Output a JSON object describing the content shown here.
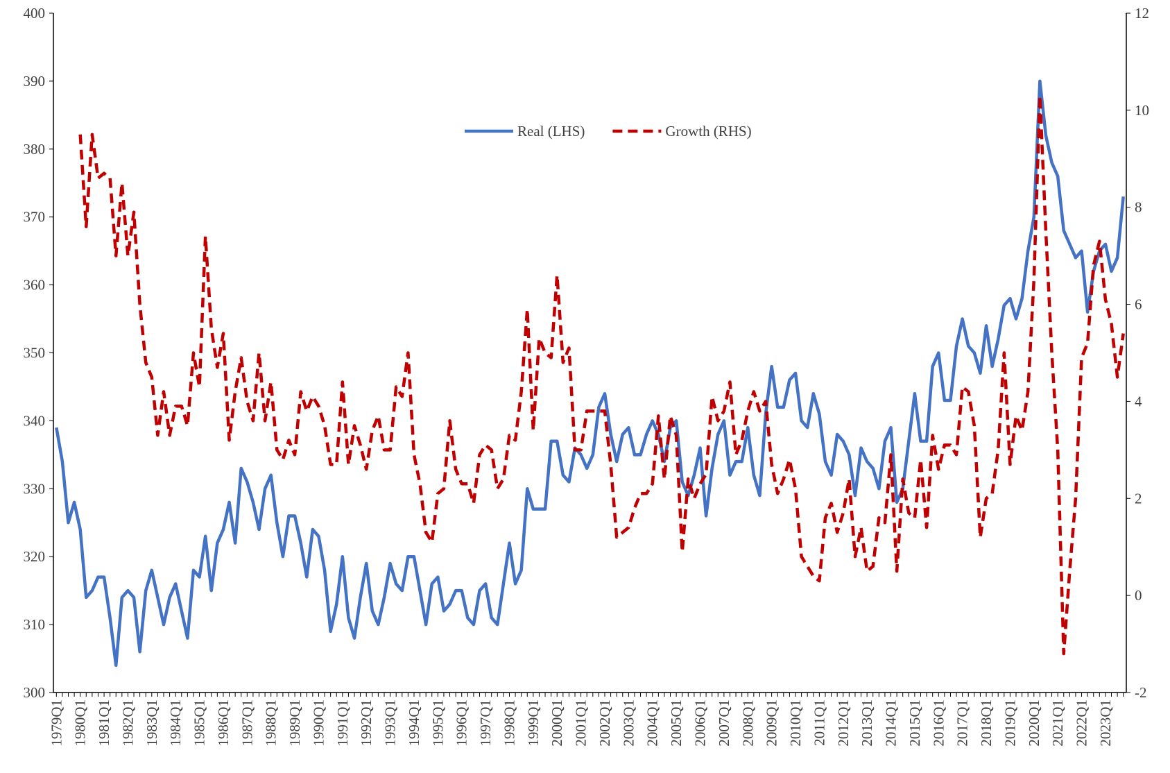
{
  "chart_data": {
    "type": "line",
    "legend": "top",
    "ylim": [
      300,
      400
    ],
    "yticks": [
      300,
      310,
      320,
      330,
      340,
      350,
      360,
      370,
      380,
      390,
      400
    ],
    "y2lim": [
      -2,
      12
    ],
    "y2ticks": [
      -2,
      0,
      2,
      4,
      6,
      8,
      10,
      12
    ],
    "categories": [
      "1979Q1",
      null,
      null,
      null,
      "1980Q1",
      null,
      null,
      null,
      "1981Q1",
      null,
      null,
      null,
      "1982Q1",
      null,
      null,
      null,
      "1983Q1",
      null,
      null,
      null,
      "1984Q1",
      null,
      null,
      null,
      "1985Q1",
      null,
      null,
      null,
      "1986Q1",
      null,
      null,
      null,
      "1987Q1",
      null,
      null,
      null,
      "1988Q1",
      null,
      null,
      null,
      "1989Q1",
      null,
      null,
      null,
      "1990Q1",
      null,
      null,
      null,
      "1991Q1",
      null,
      null,
      null,
      "1992Q1",
      null,
      null,
      null,
      "1993Q1",
      null,
      null,
      null,
      "1994Q1",
      null,
      null,
      null,
      "1995Q1",
      null,
      null,
      null,
      "1996Q1",
      null,
      null,
      null,
      "1997Q1",
      null,
      null,
      null,
      "1998Q1",
      null,
      null,
      null,
      "1999Q1",
      null,
      null,
      null,
      "2000Q1",
      null,
      null,
      null,
      "2001Q1",
      null,
      null,
      null,
      "2002Q1",
      null,
      null,
      null,
      "2003Q1",
      null,
      null,
      null,
      "2004Q1",
      null,
      null,
      null,
      "2005Q1",
      null,
      null,
      null,
      "2006Q1",
      null,
      null,
      null,
      "2007Q1",
      null,
      null,
      null,
      "2008Q1",
      null,
      null,
      null,
      "2009Q1",
      null,
      null,
      null,
      "2010Q1",
      null,
      null,
      null,
      "2011Q1",
      null,
      null,
      null,
      "2012Q1",
      null,
      null,
      null,
      "2013Q1",
      null,
      null,
      null,
      "2014Q1",
      null,
      null,
      null,
      "2015Q1",
      null,
      null,
      null,
      "2016Q1",
      null,
      null,
      null,
      "2017Q1",
      null,
      null,
      null,
      "2018Q1",
      null,
      null,
      null,
      "2019Q1",
      null,
      null,
      null,
      "2020Q1",
      null,
      null,
      null,
      "2021Q1",
      null,
      null,
      null,
      "2022Q1",
      null,
      null,
      null,
      "2023Q1",
      null,
      null,
      null
    ],
    "series": [
      {
        "name": "Real (LHS)",
        "color": "#4472c4",
        "axis": "y",
        "values": [
          339,
          334,
          325,
          328,
          324,
          314,
          315,
          317,
          317,
          311,
          304,
          314,
          315,
          314,
          306,
          315,
          318,
          314,
          310,
          314,
          316,
          312,
          308,
          318,
          317,
          323,
          315,
          322,
          324,
          328,
          322,
          333,
          331,
          328,
          324,
          330,
          332,
          325,
          320,
          326,
          326,
          322,
          317,
          324,
          323,
          318,
          309,
          313,
          320,
          311,
          308,
          314,
          319,
          312,
          310,
          314,
          319,
          316,
          315,
          320,
          320,
          315,
          310,
          316,
          317,
          312,
          313,
          315,
          315,
          311,
          310,
          315,
          316,
          311,
          310,
          316,
          322,
          316,
          318,
          330,
          327,
          327,
          327,
          337,
          337,
          332,
          331,
          336,
          335,
          333,
          335,
          342,
          344,
          338,
          334,
          338,
          339,
          335,
          335,
          338,
          340,
          338,
          334,
          339,
          340,
          331,
          329,
          332,
          336,
          326,
          333,
          338,
          340,
          332,
          334,
          334,
          339,
          332,
          329,
          341,
          348,
          342,
          342,
          346,
          347,
          340,
          339,
          344,
          341,
          334,
          332,
          338,
          337,
          335,
          329,
          336,
          334,
          333,
          330,
          337,
          339,
          328,
          330,
          337,
          344,
          337,
          337,
          348,
          350,
          343,
          343,
          351,
          355,
          351,
          350,
          347,
          354,
          348,
          352,
          357,
          358,
          355,
          358,
          365,
          370,
          390,
          382,
          378,
          376,
          368,
          366,
          364,
          365,
          356,
          362,
          365,
          366,
          362,
          364,
          373
        ]
      },
      {
        "name": "Growth (RHS)",
        "color": "#c00000",
        "axis": "y2",
        "dashed": true,
        "values": [
          null,
          null,
          null,
          null,
          9.5,
          7.6,
          9.5,
          8.6,
          8.7,
          8.6,
          7.0,
          8.5,
          7.0,
          7.9,
          6.0,
          4.8,
          4.5,
          3.3,
          4.2,
          3.3,
          3.9,
          3.9,
          3.5,
          5.0,
          4.3,
          7.4,
          5.5,
          4.7,
          5.4,
          3.2,
          4.2,
          4.9,
          4.0,
          3.6,
          5.0,
          3.6,
          4.4,
          3.0,
          2.8,
          3.2,
          2.9,
          4.2,
          3.8,
          4.1,
          3.9,
          3.5,
          2.7,
          2.7,
          4.4,
          2.7,
          3.5,
          3.1,
          2.6,
          3.4,
          3.7,
          3.0,
          3.0,
          4.3,
          4.1,
          5.0,
          2.9,
          2.3,
          1.3,
          1.1,
          2.1,
          2.2,
          3.6,
          2.6,
          2.3,
          2.3,
          1.9,
          2.9,
          3.1,
          3.0,
          2.2,
          2.4,
          3.3,
          3.2,
          4.2,
          5.9,
          3.4,
          5.3,
          5.0,
          4.9,
          6.6,
          4.8,
          5.1,
          3.0,
          3.0,
          3.8,
          3.8,
          3.8,
          3.8,
          2.7,
          1.2,
          1.3,
          1.4,
          1.8,
          2.1,
          2.1,
          2.3,
          3.7,
          2.4,
          3.7,
          3.3,
          0.9,
          2.4,
          2.0,
          2.3,
          2.5,
          4.1,
          3.6,
          3.8,
          4.4,
          2.9,
          3.2,
          3.8,
          4.2,
          3.8,
          4.0,
          2.7,
          2.1,
          2.4,
          2.8,
          2.2,
          0.8,
          0.6,
          0.4,
          0.3,
          1.6,
          1.9,
          1.3,
          1.7,
          2.4,
          0.8,
          1.4,
          0.5,
          0.6,
          1.6,
          1.5,
          2.9,
          0.5,
          2.4,
          1.7,
          1.6,
          2.8,
          1.4,
          3.3,
          2.6,
          3.1,
          3.1,
          2.9,
          4.3,
          4.2,
          3.5,
          1.2,
          2.0,
          2.1,
          3.0,
          5.0,
          2.7,
          3.7,
          3.4,
          4.2,
          6.5,
          10.3,
          7.5,
          5.0,
          3.0,
          -1.2,
          0.5,
          2.0,
          4.9,
          5.2,
          6.8,
          7.3,
          6.1,
          5.6,
          4.5,
          5.4
        ]
      }
    ]
  }
}
